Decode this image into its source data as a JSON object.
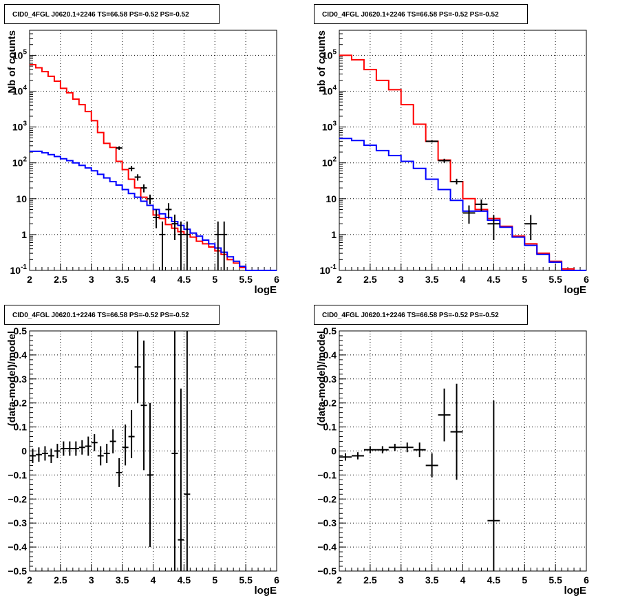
{
  "chart_data": [
    {
      "type": "line",
      "title": "CID0_4FGL J0620.1+2246 TS=66.58 PS=-0.52 PS=-0.52",
      "xlabel": "logE",
      "ylabel": "Nb of counts",
      "xlim": [
        2,
        6
      ],
      "ylim": [
        0.1,
        500000
      ],
      "yscale": "log",
      "grid": true,
      "xticks": [
        "2",
        "2.5",
        "3",
        "3.5",
        "4",
        "4.5",
        "5",
        "5.5",
        "6"
      ],
      "yticks": [
        {
          "v": 0.1,
          "base": "10",
          "exp": "-1"
        },
        {
          "v": 1,
          "label": "1"
        },
        {
          "v": 10,
          "label": "10"
        },
        {
          "v": 100,
          "base": "10",
          "exp": "2"
        },
        {
          "v": 1000,
          "base": "10",
          "exp": "3"
        },
        {
          "v": 10000,
          "base": "10",
          "exp": "4"
        },
        {
          "v": 100000,
          "base": "10",
          "exp": "5"
        }
      ],
      "bin_edges": [
        2,
        2.1,
        2.2,
        2.3,
        2.4,
        2.5,
        2.6,
        2.7,
        2.8,
        2.9,
        3.0,
        3.1,
        3.2,
        3.3,
        3.4,
        3.5,
        3.6,
        3.7,
        3.8,
        3.9,
        4.0,
        4.1,
        4.2,
        4.3,
        4.4,
        4.5,
        4.6,
        4.7,
        4.8,
        4.9,
        5.0,
        5.1,
        5.2,
        5.3,
        5.4,
        5.5,
        5.6,
        5.7,
        5.8,
        5.9,
        6.0
      ],
      "series": [
        {
          "color": "#ff0000",
          "values": [
            55000,
            45000,
            35000,
            26000,
            19000,
            12000,
            9000,
            6000,
            4200,
            2700,
            1500,
            700,
            350,
            270,
            110,
            65,
            35,
            20,
            11,
            6.5,
            3.5,
            2.8,
            1.9,
            1.5,
            1.2,
            1.0,
            0.85,
            0.65,
            0.55,
            0.45,
            0.35,
            0.28,
            0.2,
            0.16,
            0.12,
            0.1,
            0.1,
            0.1,
            0.1,
            0.1
          ]
        },
        {
          "color": "#0000ff",
          "values": [
            210,
            210,
            190,
            170,
            150,
            130,
            115,
            100,
            85,
            72,
            60,
            48,
            38,
            30,
            24,
            18,
            14,
            11,
            8.5,
            6.5,
            5.0,
            3.8,
            3.0,
            2.3,
            1.8,
            1.4,
            1.1,
            0.9,
            0.7,
            0.55,
            0.42,
            0.32,
            0.24,
            0.18,
            0.13,
            0.1,
            0.1,
            0.1,
            0.1,
            0.1
          ]
        }
      ],
      "points": [
        {
          "x": 3.45,
          "xerr": 0.05,
          "y": 260,
          "ylo": 230,
          "yhi": 290
        },
        {
          "x": 3.65,
          "xerr": 0.05,
          "y": 70,
          "ylo": 58,
          "yhi": 82
        },
        {
          "x": 3.75,
          "xerr": 0.05,
          "y": 40,
          "ylo": 32,
          "yhi": 48
        },
        {
          "x": 3.85,
          "xerr": 0.05,
          "y": 20,
          "ylo": 15,
          "yhi": 25
        },
        {
          "x": 3.95,
          "xerr": 0.05,
          "y": 10,
          "ylo": 7,
          "yhi": 13
        },
        {
          "x": 4.05,
          "xerr": 0.05,
          "y": 3,
          "ylo": 1.5,
          "yhi": 5
        },
        {
          "x": 4.15,
          "xerr": 0.05,
          "y": 1,
          "ylo": 0.1,
          "yhi": 2.3
        },
        {
          "x": 4.25,
          "xerr": 0.05,
          "y": 5,
          "ylo": 2.8,
          "yhi": 7.5
        },
        {
          "x": 4.35,
          "xerr": 0.05,
          "y": 2,
          "ylo": 0.7,
          "yhi": 3.6
        },
        {
          "x": 4.45,
          "xerr": 0.05,
          "y": 1,
          "ylo": 0.1,
          "yhi": 2.3
        },
        {
          "x": 4.55,
          "xerr": 0.05,
          "y": 1,
          "ylo": 0.1,
          "yhi": 2.3
        },
        {
          "x": 5.05,
          "xerr": 0.05,
          "y": 1,
          "ylo": 0.1,
          "yhi": 2.3
        },
        {
          "x": 5.15,
          "xerr": 0.05,
          "y": 1,
          "ylo": 0.1,
          "yhi": 2.3
        }
      ]
    },
    {
      "type": "line",
      "title": "CID0_4FGL J0620.1+2246 TS=66.58 PS=-0.52 PS=-0.52",
      "xlabel": "logE",
      "ylabel": "nb of counts",
      "xlim": [
        2,
        6
      ],
      "ylim": [
        0.1,
        500000
      ],
      "yscale": "log",
      "grid": true,
      "xticks": [
        "2",
        "2.5",
        "3",
        "3.5",
        "4",
        "4.5",
        "5",
        "5.5",
        "6"
      ],
      "yticks": [
        {
          "v": 0.1,
          "base": "10",
          "exp": "-1"
        },
        {
          "v": 1,
          "label": "1"
        },
        {
          "v": 10,
          "label": "10"
        },
        {
          "v": 100,
          "base": "10",
          "exp": "2"
        },
        {
          "v": 1000,
          "base": "10",
          "exp": "3"
        },
        {
          "v": 10000,
          "base": "10",
          "exp": "4"
        },
        {
          "v": 100000,
          "base": "10",
          "exp": "5"
        }
      ],
      "bin_edges": [
        2,
        2.2,
        2.4,
        2.6,
        2.8,
        3.0,
        3.2,
        3.4,
        3.6,
        3.8,
        4.0,
        4.2,
        4.4,
        4.6,
        4.8,
        5.0,
        5.2,
        5.4,
        5.6,
        5.8,
        6.0
      ],
      "series": [
        {
          "color": "#ff0000",
          "values": [
            100000,
            75000,
            40000,
            20000,
            11000,
            4200,
            1200,
            400,
            120,
            30,
            10,
            5,
            2.8,
            1.7,
            0.9,
            0.55,
            0.3,
            0.18,
            0.11,
            0.1
          ]
        },
        {
          "color": "#0000ff",
          "values": [
            480,
            420,
            310,
            220,
            160,
            110,
            70,
            35,
            18,
            9,
            4.5,
            4.5,
            2.5,
            1.6,
            0.85,
            0.5,
            0.28,
            0.17,
            0.1,
            0.1
          ]
        }
      ],
      "points": [
        {
          "x": 3.5,
          "xerr": 0.1,
          "y": 400,
          "ylo": 370,
          "yhi": 430
        },
        {
          "x": 3.7,
          "xerr": 0.1,
          "y": 115,
          "ylo": 100,
          "yhi": 130
        },
        {
          "x": 3.9,
          "xerr": 0.1,
          "y": 30,
          "ylo": 25,
          "yhi": 36
        },
        {
          "x": 4.1,
          "xerr": 0.1,
          "y": 4,
          "ylo": 2,
          "yhi": 6.5
        },
        {
          "x": 4.3,
          "xerr": 0.1,
          "y": 7,
          "ylo": 4.5,
          "yhi": 9.5
        },
        {
          "x": 4.5,
          "xerr": 0.1,
          "y": 2,
          "ylo": 0.7,
          "yhi": 3.5
        },
        {
          "x": 5.1,
          "xerr": 0.1,
          "y": 2,
          "ylo": 0.7,
          "yhi": 3.5
        }
      ]
    },
    {
      "type": "scatter",
      "title": "CID0_4FGL J0620.1+2246 TS=66.58 PS=-0.52 PS=-0.52",
      "xlabel": "logE",
      "ylabel": "(data-model)/model",
      "xlim": [
        2,
        6
      ],
      "ylim": [
        -0.5,
        0.5
      ],
      "grid": true,
      "xticks": [
        "2",
        "2.5",
        "3",
        "3.5",
        "4",
        "4.5",
        "5",
        "5.5",
        "6"
      ],
      "yticks": [
        {
          "v": -0.5,
          "label": "−0.5"
        },
        {
          "v": -0.4,
          "label": "−0.4"
        },
        {
          "v": -0.3,
          "label": "−0.3"
        },
        {
          "v": -0.2,
          "label": "−0.2"
        },
        {
          "v": -0.1,
          "label": "−0.1"
        },
        {
          "v": 0,
          "label": "0"
        },
        {
          "v": 0.1,
          "label": "0.1"
        },
        {
          "v": 0.2,
          "label": "0.2"
        },
        {
          "v": 0.3,
          "label": "0.3"
        },
        {
          "v": 0.4,
          "label": "0.4"
        },
        {
          "v": 0.5,
          "label": "0.5"
        }
      ],
      "points": [
        {
          "x": 2.05,
          "xerr": 0.05,
          "y": -0.02,
          "ylo": -0.05,
          "yhi": 0.01
        },
        {
          "x": 2.15,
          "xerr": 0.05,
          "y": -0.015,
          "ylo": -0.045,
          "yhi": 0.015
        },
        {
          "x": 2.25,
          "xerr": 0.05,
          "y": -0.01,
          "ylo": -0.04,
          "yhi": 0.02
        },
        {
          "x": 2.35,
          "xerr": 0.05,
          "y": -0.02,
          "ylo": -0.05,
          "yhi": 0.01
        },
        {
          "x": 2.45,
          "xerr": 0.05,
          "y": 0.0,
          "ylo": -0.03,
          "yhi": 0.03
        },
        {
          "x": 2.55,
          "xerr": 0.05,
          "y": 0.01,
          "ylo": -0.02,
          "yhi": 0.04
        },
        {
          "x": 2.65,
          "xerr": 0.05,
          "y": 0.01,
          "ylo": -0.02,
          "yhi": 0.04
        },
        {
          "x": 2.75,
          "xerr": 0.05,
          "y": 0.01,
          "ylo": -0.02,
          "yhi": 0.04
        },
        {
          "x": 2.85,
          "xerr": 0.05,
          "y": 0.015,
          "ylo": -0.015,
          "yhi": 0.045
        },
        {
          "x": 2.95,
          "xerr": 0.05,
          "y": 0.02,
          "ylo": -0.02,
          "yhi": 0.06
        },
        {
          "x": 3.05,
          "xerr": 0.05,
          "y": 0.035,
          "ylo": 0.0,
          "yhi": 0.07
        },
        {
          "x": 3.15,
          "xerr": 0.05,
          "y": -0.02,
          "ylo": -0.06,
          "yhi": 0.02
        },
        {
          "x": 3.25,
          "xerr": 0.05,
          "y": -0.01,
          "ylo": -0.05,
          "yhi": 0.03
        },
        {
          "x": 3.35,
          "xerr": 0.05,
          "y": 0.04,
          "ylo": -0.01,
          "yhi": 0.09
        },
        {
          "x": 3.45,
          "xerr": 0.05,
          "y": -0.09,
          "ylo": -0.15,
          "yhi": -0.03
        },
        {
          "x": 3.55,
          "xerr": 0.05,
          "y": 0.015,
          "ylo": -0.06,
          "yhi": 0.11
        },
        {
          "x": 3.65,
          "xerr": 0.05,
          "y": 0.06,
          "ylo": -0.03,
          "yhi": 0.17
        },
        {
          "x": 3.75,
          "xerr": 0.05,
          "y": 0.35,
          "ylo": 0.2,
          "yhi": 0.5
        },
        {
          "x": 3.85,
          "xerr": 0.05,
          "y": 0.19,
          "ylo": -0.08,
          "yhi": 0.46
        },
        {
          "x": 3.95,
          "xerr": 0.05,
          "y": -0.1,
          "ylo": -0.4,
          "yhi": 0.2
        },
        {
          "x": 4.35,
          "xerr": 0.05,
          "y": -0.01,
          "ylo": -0.5,
          "yhi": 0.5
        },
        {
          "x": 4.45,
          "xerr": 0.05,
          "y": -0.37,
          "ylo": -0.5,
          "yhi": 0.26
        },
        {
          "x": 4.55,
          "xerr": 0.05,
          "y": -0.18,
          "ylo": -0.5,
          "yhi": 0.5
        }
      ]
    },
    {
      "type": "scatter",
      "title": "CID0_4FGL J0620.1+2246 TS=66.58 PS=-0.52 PS=-0.52",
      "xlabel": "logE",
      "ylabel": "(data-model)/model",
      "xlim": [
        2,
        6
      ],
      "ylim": [
        -0.5,
        0.5
      ],
      "grid": true,
      "xticks": [
        "2",
        "2.5",
        "3",
        "3.5",
        "4",
        "4.5",
        "5",
        "5.5",
        "6"
      ],
      "yticks": [
        {
          "v": -0.5,
          "label": "−0.5"
        },
        {
          "v": -0.4,
          "label": "−0.4"
        },
        {
          "v": -0.3,
          "label": "−0.3"
        },
        {
          "v": -0.2,
          "label": "−0.2"
        },
        {
          "v": -0.1,
          "label": "−0.1"
        },
        {
          "v": 0,
          "label": "0"
        },
        {
          "v": 0.1,
          "label": "0.1"
        },
        {
          "v": 0.2,
          "label": "0.2"
        },
        {
          "v": 0.3,
          "label": "0.3"
        },
        {
          "v": 0.4,
          "label": "0.4"
        },
        {
          "v": 0.5,
          "label": "0.5"
        }
      ],
      "points": [
        {
          "x": 2.1,
          "xerr": 0.1,
          "y": -0.025,
          "ylo": -0.04,
          "yhi": -0.01
        },
        {
          "x": 2.3,
          "xerr": 0.1,
          "y": -0.02,
          "ylo": -0.035,
          "yhi": -0.005
        },
        {
          "x": 2.5,
          "xerr": 0.1,
          "y": 0.005,
          "ylo": -0.01,
          "yhi": 0.02
        },
        {
          "x": 2.7,
          "xerr": 0.1,
          "y": 0.005,
          "ylo": -0.01,
          "yhi": 0.02
        },
        {
          "x": 2.9,
          "xerr": 0.1,
          "y": 0.015,
          "ylo": 0.0,
          "yhi": 0.03
        },
        {
          "x": 3.1,
          "xerr": 0.1,
          "y": 0.015,
          "ylo": -0.005,
          "yhi": 0.035
        },
        {
          "x": 3.3,
          "xerr": 0.1,
          "y": 0.005,
          "ylo": -0.025,
          "yhi": 0.035
        },
        {
          "x": 3.5,
          "xerr": 0.1,
          "y": -0.06,
          "ylo": -0.11,
          "yhi": -0.01
        },
        {
          "x": 3.7,
          "xerr": 0.1,
          "y": 0.15,
          "ylo": 0.04,
          "yhi": 0.26
        },
        {
          "x": 3.9,
          "xerr": 0.1,
          "y": 0.08,
          "ylo": -0.12,
          "yhi": 0.28
        },
        {
          "x": 4.5,
          "xerr": 0.1,
          "y": -0.29,
          "ylo": -0.5,
          "yhi": 0.21
        }
      ]
    }
  ]
}
